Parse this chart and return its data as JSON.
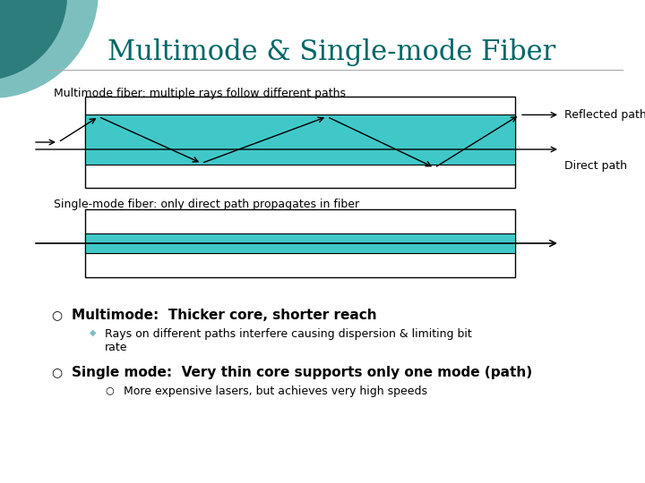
{
  "title": "Multimode & Single-mode Fiber",
  "title_color": "#006666",
  "title_fontsize": 22,
  "bg_color": "#ffffff",
  "multimode_label": "Multimode fiber: multiple rays follow different paths",
  "singlemode_label": "Single-mode fiber: only direct path propagates in fiber",
  "reflected_label": "Reflected path",
  "direct_label": "Direct path",
  "fiber_color": "#40c8c8",
  "circle_dark": "#2d7d7d",
  "circle_light": "#7dbfbf",
  "bullet1_main": "Multimode:  Thicker core, shorter reach",
  "bullet1_sub": "Rays on different paths interfere causing dispersion & limiting bit\nrate",
  "bullet2_main": "Single mode:  Very thin core supports only one mode (path)",
  "bullet2_sub": "More expensive lasers, but achieves very high speeds"
}
